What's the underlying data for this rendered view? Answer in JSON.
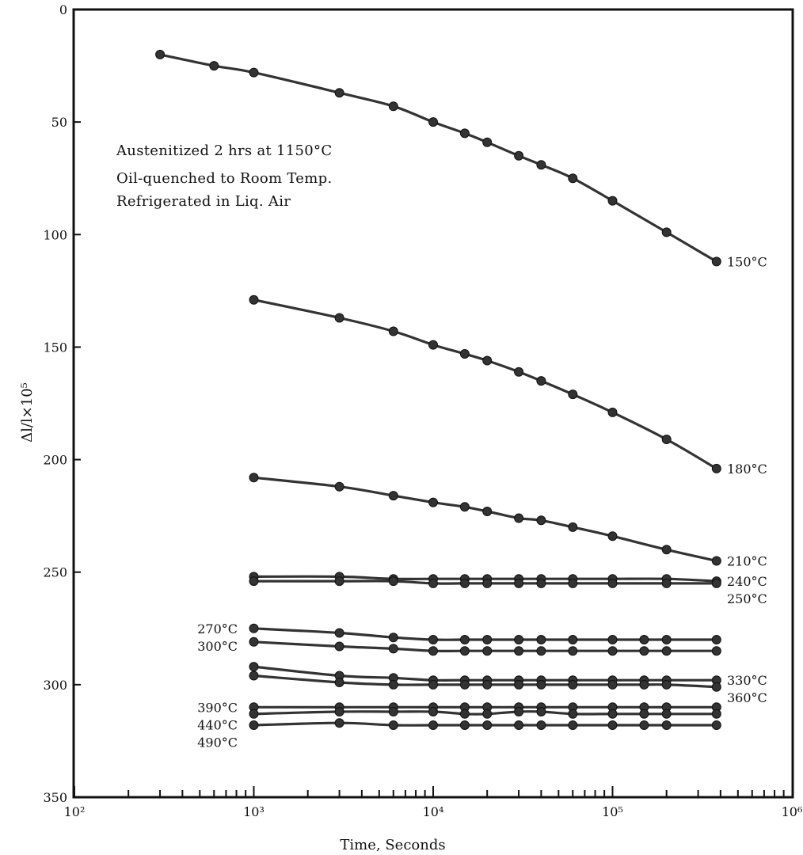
{
  "chart_data": {
    "type": "scatter",
    "xscale": "log",
    "xlim": [
      100,
      1000000
    ],
    "ylim": [
      0,
      350
    ],
    "yreversed": true,
    "grid": false,
    "xlabel": "Time, Seconds",
    "ylabel": "Δl/l×10⁵",
    "xticks": [
      {
        "value": 100,
        "label": "10²"
      },
      {
        "value": 1000,
        "label": "10³"
      },
      {
        "value": 10000,
        "label": "10⁴"
      },
      {
        "value": 100000,
        "label": "10⁵"
      },
      {
        "value": 1000000,
        "label": "10⁶"
      }
    ],
    "yticks": [
      0,
      50,
      100,
      150,
      200,
      250,
      300,
      350
    ],
    "annotation": [
      "Austenitized 2 hrs at 1150°C",
      "Oil-quenched to Room Temp.",
      "Refrigerated in Liq. Air"
    ],
    "series": [
      {
        "name": "150°C",
        "label_side": "right",
        "x": [
          300,
          600,
          1000,
          3000,
          6000,
          10000,
          15000,
          20000,
          30000,
          40000,
          60000,
          100000,
          200000,
          380000
        ],
        "y": [
          20,
          25,
          28,
          37,
          43,
          50,
          55,
          59,
          65,
          69,
          75,
          85,
          99,
          112
        ]
      },
      {
        "name": "180°C",
        "label_side": "right",
        "x": [
          1000,
          3000,
          6000,
          10000,
          15000,
          20000,
          30000,
          40000,
          60000,
          100000,
          200000,
          380000
        ],
        "y": [
          129,
          137,
          143,
          149,
          153,
          156,
          161,
          165,
          171,
          179,
          191,
          204
        ]
      },
      {
        "name": "210°C",
        "label_side": "right",
        "x": [
          1000,
          3000,
          6000,
          10000,
          15000,
          20000,
          30000,
          40000,
          60000,
          100000,
          200000,
          380000
        ],
        "y": [
          208,
          212,
          216,
          219,
          221,
          223,
          226,
          227,
          230,
          234,
          240,
          245
        ]
      },
      {
        "name": "240°C",
        "label_side": "right",
        "x": [
          1000,
          3000,
          6000,
          10000,
          15000,
          20000,
          30000,
          40000,
          60000,
          100000,
          200000,
          380000
        ],
        "y": [
          252,
          252,
          253,
          253,
          253,
          253,
          253,
          253,
          253,
          253,
          253,
          254
        ]
      },
      {
        "name": "250°C",
        "label_side": "right",
        "x": [
          1000,
          3000,
          6000,
          10000,
          15000,
          20000,
          30000,
          40000,
          60000,
          100000,
          200000,
          380000
        ],
        "y": [
          254,
          254,
          254,
          255,
          255,
          255,
          255,
          255,
          255,
          255,
          255,
          255
        ]
      },
      {
        "name": "270°C",
        "label_side": "left",
        "x": [
          1000,
          3000,
          6000,
          10000,
          15000,
          20000,
          30000,
          40000,
          60000,
          100000,
          150000,
          200000,
          380000
        ],
        "y": [
          275,
          277,
          279,
          280,
          280,
          280,
          280,
          280,
          280,
          280,
          280,
          280,
          280
        ]
      },
      {
        "name": "300°C",
        "label_side": "left",
        "x": [
          1000,
          3000,
          6000,
          10000,
          15000,
          20000,
          30000,
          40000,
          60000,
          100000,
          150000,
          200000,
          380000
        ],
        "y": [
          281,
          283,
          284,
          285,
          285,
          285,
          285,
          285,
          285,
          285,
          285,
          285,
          285
        ]
      },
      {
        "name": "330°C",
        "label_side": "right",
        "x": [
          1000,
          3000,
          6000,
          10000,
          15000,
          20000,
          30000,
          40000,
          60000,
          100000,
          150000,
          200000,
          380000
        ],
        "y": [
          292,
          296,
          297,
          298,
          298,
          298,
          298,
          298,
          298,
          298,
          298,
          298,
          298
        ]
      },
      {
        "name": "360°C",
        "label_side": "right",
        "x": [
          1000,
          3000,
          6000,
          10000,
          15000,
          20000,
          30000,
          40000,
          60000,
          100000,
          150000,
          200000,
          380000
        ],
        "y": [
          296,
          299,
          300,
          300,
          300,
          300,
          300,
          300,
          300,
          300,
          300,
          300,
          301
        ]
      },
      {
        "name": "390°C",
        "label_side": "left",
        "x": [
          1000,
          3000,
          6000,
          10000,
          15000,
          20000,
          30000,
          40000,
          60000,
          100000,
          150000,
          200000,
          380000
        ],
        "y": [
          310,
          310,
          310,
          310,
          310,
          310,
          310,
          310,
          310,
          310,
          310,
          310,
          310
        ]
      },
      {
        "name": "440°C",
        "label_side": "left",
        "x": [
          1000,
          3000,
          6000,
          10000,
          15000,
          20000,
          30000,
          40000,
          60000,
          100000,
          150000,
          200000,
          380000
        ],
        "y": [
          313,
          312,
          312,
          312,
          313,
          313,
          312,
          312,
          313,
          313,
          313,
          313,
          313
        ]
      },
      {
        "name": "490°C",
        "label_side": "left",
        "x": [
          1000,
          3000,
          6000,
          10000,
          15000,
          20000,
          30000,
          40000,
          60000,
          100000,
          150000,
          200000,
          380000
        ],
        "y": [
          318,
          317,
          318,
          318,
          318,
          318,
          318,
          318,
          318,
          318,
          318,
          318,
          318
        ]
      }
    ]
  }
}
